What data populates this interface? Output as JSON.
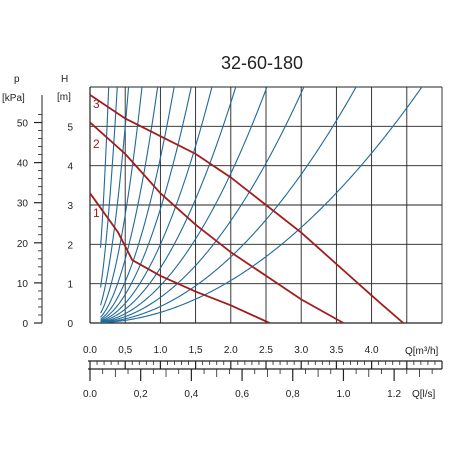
{
  "chart_data": {
    "type": "line",
    "title": "32-60-180",
    "left_axis": {
      "label_symbol": "p",
      "label_unit": "[kPa]",
      "ticks": [
        0,
        10,
        20,
        30,
        40,
        50
      ]
    },
    "y_axis": {
      "label_symbol": "H",
      "label_unit": "[m]",
      "ticks": [
        0,
        1,
        2,
        3,
        4,
        5
      ],
      "range": [
        0,
        6
      ]
    },
    "x_axis_primary": {
      "unit_label": "Q[m³/h]",
      "ticks": [
        "0.0",
        "0,5",
        "1.0",
        "1,5",
        "2.0",
        "2.5",
        "3.0",
        "3.5",
        "4.0"
      ],
      "range": [
        0,
        5
      ]
    },
    "x_axis_secondary": {
      "unit_label": "Q[l/s]",
      "ticks": [
        "0.0",
        "0,2",
        "0,4",
        "0,6",
        "0,8",
        "1.0",
        "1.2"
      ]
    },
    "grid": true,
    "series": [
      {
        "name": "1",
        "color": "#a11d1d",
        "points": [
          [
            0,
            3.3
          ],
          [
            0.4,
            2.3
          ],
          [
            0.6,
            1.6
          ],
          [
            1.0,
            1.2
          ],
          [
            1.5,
            0.8
          ],
          [
            2.0,
            0.45
          ],
          [
            2.55,
            0.0
          ]
        ]
      },
      {
        "name": "2",
        "color": "#a11d1d",
        "points": [
          [
            0,
            5.1
          ],
          [
            0.5,
            4.3
          ],
          [
            1.0,
            3.3
          ],
          [
            1.5,
            2.5
          ],
          [
            2.0,
            1.8
          ],
          [
            2.5,
            1.2
          ],
          [
            3.0,
            0.6
          ],
          [
            3.6,
            0.0
          ]
        ]
      },
      {
        "name": "3",
        "color": "#a11d1d",
        "points": [
          [
            0,
            5.8
          ],
          [
            0.5,
            5.2
          ],
          [
            1.0,
            4.75
          ],
          [
            1.5,
            4.3
          ],
          [
            2.0,
            3.7
          ],
          [
            2.5,
            3.0
          ],
          [
            3.0,
            2.3
          ],
          [
            3.5,
            1.5
          ],
          [
            4.0,
            0.7
          ],
          [
            4.45,
            0.0
          ]
        ]
      }
    ],
    "system_curves": {
      "color": "#1f6a9a",
      "k_values": [
        85,
        40,
        20,
        11,
        6.5,
        4.2,
        2.9,
        2.0,
        1.4,
        0.95,
        0.65,
        0.42,
        0.27
      ]
    }
  }
}
